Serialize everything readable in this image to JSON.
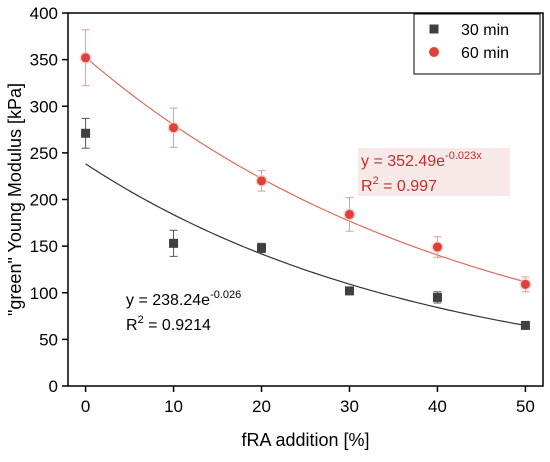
{
  "chart_data": {
    "type": "scatter",
    "xlabel": "fRA addition [%]",
    "ylabel": "\"green\" Young Modulus [kPa]",
    "xlim": [
      -2,
      52
    ],
    "ylim": [
      0,
      400
    ],
    "xticks": [
      0,
      10,
      20,
      30,
      40,
      50
    ],
    "yticks": [
      0,
      50,
      100,
      150,
      200,
      250,
      300,
      350,
      400
    ],
    "grid": false,
    "legend_position": "top-right",
    "series": [
      {
        "name": "30 min",
        "marker": "square",
        "color": "#404040",
        "x": [
          0,
          10,
          20,
          30,
          40,
          50
        ],
        "y": [
          271,
          153,
          148,
          102,
          95,
          65
        ],
        "err": [
          16,
          14,
          5,
          4,
          6,
          3
        ],
        "fit": {
          "a": 238.24,
          "b": -0.026,
          "color": "#333333",
          "equation_base": "y = 238.24e",
          "equation_exp": "-0.026",
          "r2_label": "R",
          "r2_sup": "2",
          "r2_value": " = 0.9214",
          "color_text": "#000000"
        }
      },
      {
        "name": "60 min",
        "marker": "circle",
        "color": "#e0403a",
        "x": [
          0,
          10,
          20,
          30,
          40,
          50
        ],
        "y": [
          352,
          277,
          220,
          184,
          149,
          109
        ],
        "err": [
          30,
          21,
          11,
          18,
          11,
          8
        ],
        "fit": {
          "a": 352.49,
          "b": -0.023,
          "color": "#e06b5a",
          "equation_base": "y = 352.49e",
          "equation_exp": "-0.023x",
          "r2_label": "R",
          "r2_sup": "2",
          "r2_value": " = 0.997",
          "color_text": "#c0302a"
        }
      }
    ]
  }
}
